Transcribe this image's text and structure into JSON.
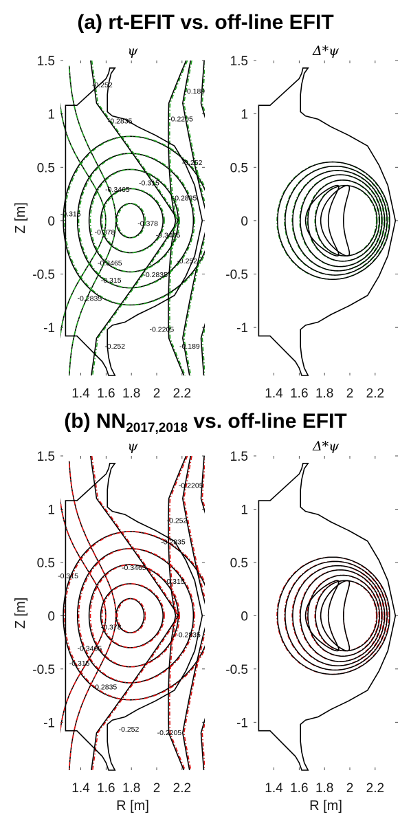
{
  "figure": {
    "title_a": "(a) rt-EFIT vs. off-line EFIT",
    "title_b_main": "(b) NN",
    "title_b_sub": "2017,2018",
    "title_b_tail": " vs. off-line EFIT"
  },
  "colors": {
    "reference": "#000000",
    "rt_efit": "#22a222",
    "nn": "#e01010"
  },
  "chart_data": [
    {
      "panel": "a-left",
      "type": "contour",
      "title": "ψ",
      "xlabel": "",
      "ylabel": "Z [m]",
      "xlim": [
        1.24,
        2.38
      ],
      "ylim": [
        -1.45,
        1.5
      ],
      "xticks": [
        "1.4",
        "1.6",
        "1.8",
        "2",
        "2.2"
      ],
      "yticks": [
        "1.5",
        "1",
        "0.5",
        "0",
        "-0.5",
        "-1"
      ],
      "series": [
        {
          "name": "",
          "role": "reference",
          "color": "#000000"
        },
        {
          "name": "",
          "role": "comparison",
          "color": "#22a222"
        }
      ],
      "contour_labels": [
        {
          "text": "-0.252",
          "r": 1.57,
          "z": 1.25
        },
        {
          "text": "-0.2835",
          "r": 1.71,
          "z": 0.91
        },
        {
          "text": "-0.189",
          "r": 2.3,
          "z": 1.19
        },
        {
          "text": "-0.2205",
          "r": 2.19,
          "z": 0.93
        },
        {
          "text": "-0.252",
          "r": 2.28,
          "z": 0.52
        },
        {
          "text": "-0.315",
          "r": 1.32,
          "z": 0.04
        },
        {
          "text": "-0.3465",
          "r": 1.69,
          "z": 0.27
        },
        {
          "text": "-0.315",
          "r": 1.94,
          "z": 0.33
        },
        {
          "text": "-0.2835",
          "r": 2.22,
          "z": 0.19
        },
        {
          "text": "-0.378",
          "r": 1.59,
          "z": -0.13
        },
        {
          "text": "-0.378",
          "r": 1.93,
          "z": -0.05
        },
        {
          "text": "-0.3465",
          "r": 2.09,
          "z": -0.16
        },
        {
          "text": "-0.3465",
          "r": 1.63,
          "z": -0.42
        },
        {
          "text": "-0.315",
          "r": 1.64,
          "z": -0.58
        },
        {
          "text": "-0.2835",
          "r": 1.99,
          "z": -0.53
        },
        {
          "text": "-0.2835",
          "r": 1.47,
          "z": -0.75
        },
        {
          "text": "-0.252",
          "r": 2.24,
          "z": -0.4
        },
        {
          "text": "-0.252",
          "r": 1.67,
          "z": -1.2
        },
        {
          "text": "-0.2205",
          "r": 2.04,
          "z": -1.04
        },
        {
          "text": "-0.189",
          "r": 2.26,
          "z": -1.2
        }
      ]
    },
    {
      "panel": "a-right",
      "type": "contour",
      "title": "Δ*ψ",
      "xlabel": "",
      "ylabel": "",
      "xlim": [
        1.24,
        2.38
      ],
      "ylim": [
        -1.45,
        1.5
      ],
      "xticks": [
        "1.4",
        "1.6",
        "1.8",
        "2",
        "2.2"
      ],
      "yticks": [
        "1.5",
        "1",
        "0.5",
        "0",
        "-0.5",
        "-1"
      ],
      "series": [
        {
          "name": "",
          "role": "reference",
          "color": "#000000"
        },
        {
          "name": "",
          "role": "comparison",
          "color": "#22a222"
        }
      ],
      "contour_labels": []
    },
    {
      "panel": "b-left",
      "type": "contour",
      "title": "ψ",
      "xlabel": "R [m]",
      "ylabel": "Z [m]",
      "xlim": [
        1.24,
        2.38
      ],
      "ylim": [
        -1.45,
        1.5
      ],
      "xticks": [
        "1.4",
        "1.6",
        "1.8",
        "2",
        "2.2"
      ],
      "yticks": [
        "1.5",
        "1",
        "0.5",
        "0",
        "-0.5",
        "-1"
      ],
      "series": [
        {
          "name": "",
          "role": "reference",
          "color": "#000000"
        },
        {
          "name": "",
          "role": "comparison",
          "color": "#e01010"
        }
      ],
      "contour_labels": [
        {
          "text": "-0.2205",
          "r": 2.27,
          "z": 1.2
        },
        {
          "text": "-0.252",
          "r": 2.16,
          "z": 0.87
        },
        {
          "text": "-0.2835",
          "r": 2.13,
          "z": 0.67
        },
        {
          "text": "-0.315",
          "r": 2.14,
          "z": 0.3
        },
        {
          "text": "-0.315",
          "r": 1.3,
          "z": 0.35
        },
        {
          "text": "-0.3465",
          "r": 1.82,
          "z": 0.43
        },
        {
          "text": "-0.378",
          "r": 1.64,
          "z": -0.13
        },
        {
          "text": "-0.2835",
          "r": 2.25,
          "z": -0.2
        },
        {
          "text": "-0.3465",
          "r": 1.47,
          "z": -0.33
        },
        {
          "text": "-0.315",
          "r": 1.39,
          "z": -0.47
        },
        {
          "text": "-0.2835",
          "r": 1.59,
          "z": -0.69
        },
        {
          "text": "-0.252",
          "r": 1.78,
          "z": -1.09
        },
        {
          "text": "-0.2205",
          "r": 2.1,
          "z": -1.12
        }
      ]
    },
    {
      "panel": "b-right",
      "type": "contour",
      "title": "Δ*ψ",
      "xlabel": "R [m]",
      "ylabel": "",
      "xlim": [
        1.24,
        2.38
      ],
      "ylim": [
        -1.45,
        1.5
      ],
      "xticks": [
        "1.4",
        "1.6",
        "1.8",
        "2",
        "2.2"
      ],
      "yticks": [
        "1.5",
        "1",
        "0.5",
        "0",
        "-0.5",
        "-1"
      ],
      "series": [
        {
          "name": "",
          "role": "reference",
          "color": "#000000"
        },
        {
          "name": "",
          "role": "comparison",
          "color": "#e01010"
        }
      ],
      "contour_labels": []
    }
  ]
}
